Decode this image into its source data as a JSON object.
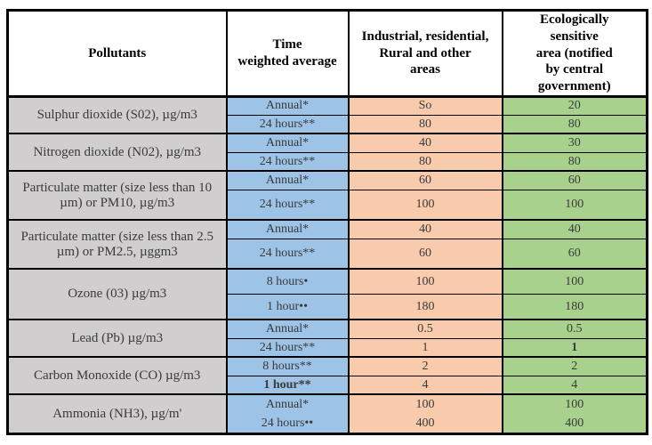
{
  "colors": {
    "border": "#000000",
    "header_bg": "#ffffff",
    "header_text": "#000000",
    "cell_text": "#3a3a3a",
    "pollutant_col_bg": "#d0cece",
    "time_col_bg": "#9dc3e6",
    "industrial_col_bg": "#f8cbad",
    "ecological_col_bg": "#a9d18e"
  },
  "table": {
    "headers": [
      {
        "id": "pollutants",
        "lines": [
          "Pollutants"
        ]
      },
      {
        "id": "time-weighted-average",
        "lines": [
          "Time",
          "weighted average"
        ]
      },
      {
        "id": "industrial-areas",
        "lines": [
          "Industrial, residential,",
          "Rural and other",
          "areas"
        ]
      },
      {
        "id": "ecological-area",
        "lines": [
          "Ecologically",
          "sensitive",
          "area (notified",
          "by central",
          "government)"
        ]
      }
    ],
    "sections": [
      {
        "pollutant": "Sulphur dioxide (S02), µg/m3",
        "rows": [
          {
            "time": "Annual*",
            "industrial": "So",
            "ecological": "20"
          },
          {
            "time": "24 hours**",
            "industrial": "80",
            "ecological": "80"
          }
        ]
      },
      {
        "pollutant": "Nitrogen dioxide (N02), µg/m3",
        "rows": [
          {
            "time": "Annual*",
            "industrial": "40",
            "ecological": "30"
          },
          {
            "time": "24 hours**",
            "industrial": "80",
            "ecological": "80"
          }
        ]
      },
      {
        "pollutant": "Particulate matter (size less than 10 µm) or PM10, µg/m3",
        "rows": [
          {
            "time": "Annual*",
            "industrial": "60",
            "ecological": "60"
          },
          {
            "time": "24 hours**",
            "industrial": "100",
            "ecological": "100"
          }
        ]
      },
      {
        "pollutant": "Particulate matter (size less than 2.5 µm) or PM2.5, µggm3",
        "rows": [
          {
            "time": "Annual*",
            "industrial": "40",
            "ecological": "40"
          },
          {
            "time": "24 hours**",
            "industrial": "60",
            "ecological": "60"
          }
        ]
      },
      {
        "pollutant": "Ozone (03) µg/m3",
        "rows": [
          {
            "time": "8 hours•",
            "industrial": "100",
            "ecological": "100"
          },
          {
            "time": "1 hour••",
            "industrial": "180",
            "ecological": "180"
          }
        ]
      },
      {
        "pollutant": "Lead (Pb) µg/m3",
        "rows": [
          {
            "time": "Annual*",
            "industrial": "0.5",
            "ecological": "0.5"
          },
          {
            "time": "24 hours**",
            "industrial": "1",
            "ecological": "1",
            "ecological_bold": true
          }
        ]
      },
      {
        "pollutant": "Carbon Monoxide (CO) µg/m3",
        "rows": [
          {
            "time": "8 hours**",
            "industrial": "2",
            "ecological": "2"
          },
          {
            "time": "1 hour**",
            "time_bold": true,
            "industrial": "4",
            "ecological": "4"
          }
        ]
      },
      {
        "pollutant": "Ammonia (NH3), µg/m'",
        "merged": true,
        "rows": [
          {
            "time": "Annual*",
            "industrial": "100",
            "ecological": "100"
          },
          {
            "time": "24 hours••",
            "industrial": "400",
            "ecological": "400"
          }
        ]
      }
    ]
  }
}
